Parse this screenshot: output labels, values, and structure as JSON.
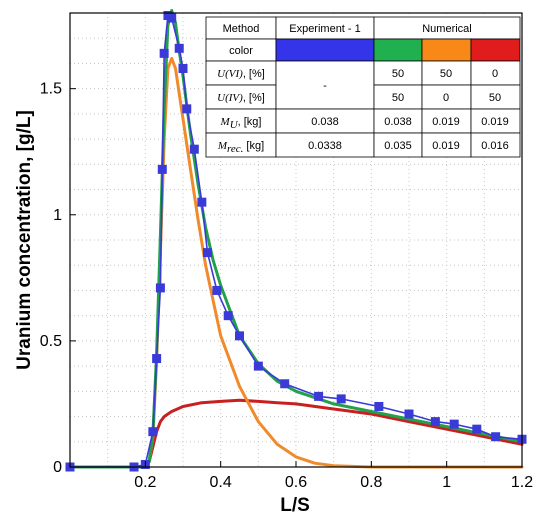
{
  "chart_data": {
    "type": "line",
    "xlabel": "L/S",
    "ylabel": "Uranium concentration, [g/L]",
    "xlim": [
      0.0,
      1.2
    ],
    "ylim": [
      0.0,
      1.8
    ],
    "xticks": [
      0.2,
      0.4,
      0.6,
      0.8,
      1,
      1.2
    ],
    "xtick_labels": [
      "0.2",
      "0.4",
      "0.6",
      "0.8",
      "1",
      "1.2"
    ],
    "yticks": [
      0,
      0.5,
      1,
      1.5
    ],
    "ytick_labels": [
      "0",
      "0.5",
      "1",
      "1.5"
    ],
    "grid": true,
    "series": [
      {
        "color": "#3a3ad8",
        "marker": "square",
        "x": [
          0.0,
          0.17,
          0.2,
          0.22,
          0.23,
          0.24,
          0.245,
          0.25,
          0.26,
          0.27,
          0.29,
          0.3,
          0.31,
          0.33,
          0.35,
          0.365,
          0.39,
          0.42,
          0.45,
          0.5,
          0.57,
          0.66,
          0.72,
          0.82,
          0.9,
          0.97,
          1.02,
          1.08,
          1.13,
          1.2
        ],
        "y": [
          0.0,
          0.0,
          0.01,
          0.14,
          0.43,
          0.71,
          1.18,
          1.64,
          1.79,
          1.78,
          1.66,
          1.58,
          1.42,
          1.26,
          1.05,
          0.85,
          0.7,
          0.6,
          0.52,
          0.4,
          0.33,
          0.28,
          0.27,
          0.24,
          0.21,
          0.18,
          0.17,
          0.15,
          0.12,
          0.11
        ]
      },
      {
        "color": "#22a04a",
        "x": [
          0.0,
          0.19,
          0.21,
          0.22,
          0.23,
          0.24,
          0.25,
          0.26,
          0.27,
          0.28,
          0.29,
          0.3,
          0.32,
          0.34,
          0.36,
          0.38,
          0.4,
          0.45,
          0.5,
          0.55,
          0.6,
          0.7,
          0.8,
          0.9,
          1.0,
          1.1,
          1.2
        ],
        "y": [
          0.0,
          0.0,
          0.02,
          0.13,
          0.45,
          0.92,
          1.42,
          1.75,
          1.81,
          1.76,
          1.65,
          1.55,
          1.32,
          1.12,
          0.95,
          0.82,
          0.72,
          0.52,
          0.41,
          0.34,
          0.3,
          0.25,
          0.22,
          0.19,
          0.16,
          0.13,
          0.1
        ]
      },
      {
        "color": "#f08a2a",
        "x": [
          0.0,
          0.19,
          0.21,
          0.22,
          0.23,
          0.24,
          0.25,
          0.26,
          0.27,
          0.28,
          0.3,
          0.32,
          0.34,
          0.36,
          0.38,
          0.4,
          0.45,
          0.5,
          0.55,
          0.6,
          0.65,
          0.7,
          0.8,
          1.2
        ],
        "y": [
          0.0,
          0.0,
          0.02,
          0.12,
          0.42,
          0.85,
          1.3,
          1.58,
          1.62,
          1.58,
          1.38,
          1.18,
          0.98,
          0.8,
          0.66,
          0.52,
          0.32,
          0.18,
          0.09,
          0.04,
          0.015,
          0.005,
          0.0,
          0.0
        ]
      },
      {
        "color": "#c82020",
        "x": [
          0.0,
          0.19,
          0.21,
          0.22,
          0.23,
          0.24,
          0.25,
          0.26,
          0.27,
          0.3,
          0.35,
          0.4,
          0.45,
          0.5,
          0.55,
          0.6,
          0.7,
          0.8,
          0.9,
          1.0,
          1.1,
          1.2
        ],
        "y": [
          0.0,
          0.0,
          0.02,
          0.08,
          0.14,
          0.18,
          0.2,
          0.21,
          0.22,
          0.24,
          0.255,
          0.26,
          0.265,
          0.26,
          0.255,
          0.25,
          0.23,
          0.21,
          0.18,
          0.15,
          0.12,
          0.09
        ]
      }
    ]
  },
  "legend_table": {
    "header": {
      "method": "Method",
      "experiment": "Experiment - 1",
      "numerical": "Numerical"
    },
    "color_row": {
      "label": "color",
      "swatches": [
        "#3434e8",
        "#20b050",
        "#f88818",
        "#e01c1c"
      ]
    },
    "rows": [
      {
        "label_italic": "U(VI)",
        "label_rest": ", [%]",
        "experiment": "-",
        "values": [
          "50",
          "50",
          "0"
        ]
      },
      {
        "label_italic": "U(IV)",
        "label_rest": ", [%]",
        "values": [
          "50",
          "0",
          "50"
        ]
      },
      {
        "label_italic": "M",
        "label_sub": "U",
        "label_rest": ", [kg]",
        "experiment": "0.038",
        "values": [
          "0.038",
          "0.019",
          "0.019"
        ]
      },
      {
        "label_italic": "M",
        "label_sub": "rec.",
        "label_rest": " [kg]",
        "experiment": "0.0338",
        "values": [
          "0.035",
          "0.019",
          "0.016"
        ]
      }
    ]
  }
}
